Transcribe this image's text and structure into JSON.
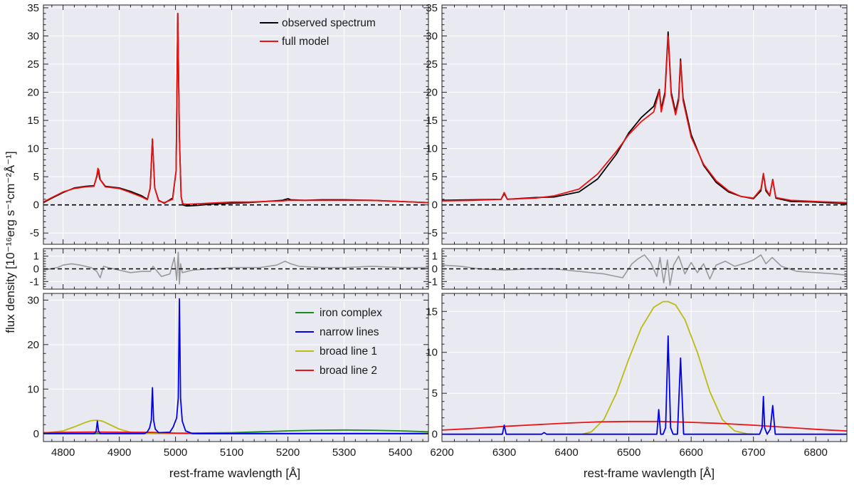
{
  "figure": {
    "ylabel": "flux density [10⁻¹⁶erg s⁻¹cm⁻²Å⁻¹]",
    "xlabel": "rest-frame wavlength [Å]",
    "legend_top": [
      "observed spectrum",
      "full model"
    ],
    "legend_bottom": [
      "iron complex",
      "narrow lines",
      "broad line 1",
      "broad line 2"
    ]
  },
  "colors": {
    "observed": "#000000",
    "model": "#ee1111",
    "residual": "#999999",
    "iron": "#1a8a1a",
    "narrow": "#0000ee",
    "broad1": "#bbbb11",
    "broad2": "#ee1111",
    "zero": "#000000",
    "panel_bg": "#e9e9f1",
    "grid": "#ffffff"
  },
  "chart_data": [
    {
      "panel": "top-left",
      "type": "line",
      "xlim": [
        4765,
        5450
      ],
      "ylim": [
        -7,
        35.5
      ],
      "xticks": [
        4800,
        4900,
        5000,
        5100,
        5200,
        5300,
        5400
      ],
      "yticks": [
        -5,
        0,
        5,
        10,
        15,
        20,
        25,
        30,
        35
      ],
      "series": [
        {
          "name": "observed spectrum",
          "color_key": "observed",
          "x": [
            4765,
            4780,
            4800,
            4820,
            4840,
            4855,
            4860,
            4863,
            4866,
            4875,
            4900,
            4920,
            4940,
            4950,
            4955,
            4959,
            4963,
            4970,
            4980,
            4995,
            5001,
            5004,
            5007,
            5010,
            5013,
            5020,
            5040,
            5060,
            5080,
            5100,
            5130,
            5160,
            5190,
            5200,
            5205,
            5230,
            5260,
            5300,
            5350,
            5400,
            5450
          ],
          "y": [
            0.4,
            1.2,
            2.2,
            3.0,
            3.3,
            3.4,
            5.0,
            6.3,
            4.5,
            3.3,
            3.0,
            2.4,
            1.6,
            1.0,
            3.0,
            11.7,
            3.0,
            0.8,
            0.3,
            1.2,
            6.0,
            34.0,
            12.0,
            1.5,
            0.0,
            -0.2,
            -0.1,
            0.1,
            0.2,
            0.3,
            0.4,
            0.6,
            0.8,
            1.1,
            0.9,
            0.8,
            0.9,
            0.9,
            0.8,
            0.6,
            0.4
          ]
        },
        {
          "name": "full model",
          "color_key": "model",
          "x": [
            4765,
            4780,
            4800,
            4820,
            4840,
            4855,
            4860,
            4862,
            4865,
            4875,
            4900,
            4920,
            4940,
            4950,
            4955,
            4959,
            4963,
            4970,
            4980,
            4995,
            5001,
            5004,
            5007,
            5010,
            5013,
            5020,
            5040,
            5060,
            5080,
            5100,
            5130,
            5160,
            5190,
            5200,
            5230,
            5260,
            5300,
            5350,
            5400,
            5450
          ],
          "y": [
            0.5,
            1.3,
            2.3,
            2.9,
            3.2,
            3.3,
            5.2,
            6.5,
            4.6,
            3.2,
            2.9,
            2.2,
            1.4,
            0.9,
            3.0,
            11.7,
            3.0,
            0.7,
            0.4,
            1.0,
            6.0,
            34.0,
            12.0,
            1.5,
            0.2,
            0.1,
            0.2,
            0.3,
            0.4,
            0.5,
            0.5,
            0.6,
            0.7,
            0.8,
            0.8,
            0.8,
            0.8,
            0.8,
            0.6,
            0.4
          ]
        }
      ],
      "hlines": [
        0
      ]
    },
    {
      "panel": "middle-left",
      "type": "line",
      "xlim": [
        4765,
        5450
      ],
      "ylim": [
        -1.6,
        1.6
      ],
      "xticks": [
        4800,
        4900,
        5000,
        5100,
        5200,
        5300,
        5400
      ],
      "yticks": [
        -1,
        0,
        1
      ],
      "series": [
        {
          "name": "residual",
          "color_key": "residual",
          "x": [
            4765,
            4790,
            4800,
            4815,
            4830,
            4850,
            4860,
            4866,
            4872,
            4880,
            4900,
            4920,
            4940,
            4955,
            4960,
            4975,
            4990,
            4998,
            5002,
            5005,
            5007,
            5009,
            5012,
            5030,
            5060,
            5100,
            5150,
            5180,
            5195,
            5205,
            5220,
            5260,
            5300,
            5350,
            5400,
            5450
          ],
          "y": [
            -0.1,
            0.1,
            0.3,
            0.4,
            0.3,
            0.1,
            -0.2,
            -0.7,
            0.2,
            0.1,
            -0.1,
            -0.3,
            -0.2,
            -0.2,
            0.2,
            -0.6,
            -0.4,
            0.9,
            -0.9,
            1.3,
            -1.2,
            0.4,
            -0.3,
            -0.1,
            0.0,
            0.1,
            0.1,
            0.3,
            0.6,
            0.4,
            0.2,
            0.1,
            0.1,
            0.2,
            0.1,
            0.1
          ]
        }
      ],
      "hlines": [
        0
      ]
    },
    {
      "panel": "bottom-left",
      "type": "line",
      "xlim": [
        4765,
        5450
      ],
      "ylim": [
        -1.8,
        31.5
      ],
      "xticks": [
        4800,
        4900,
        5000,
        5100,
        5200,
        5300,
        5400
      ],
      "xticklabels": [
        "4800",
        "4900",
        "5000",
        "5100",
        "5200",
        "5300",
        "5400"
      ],
      "yticks": [
        0,
        10,
        20,
        30
      ],
      "series": [
        {
          "name": "iron complex",
          "color_key": "iron",
          "x": [
            4765,
            4900,
            5000,
            5100,
            5150,
            5200,
            5250,
            5300,
            5350,
            5400,
            5450
          ],
          "y": [
            0.0,
            0.0,
            0.05,
            0.2,
            0.4,
            0.6,
            0.75,
            0.8,
            0.75,
            0.6,
            0.4
          ]
        },
        {
          "name": "broad line 1",
          "color_key": "broad1",
          "x": [
            4765,
            4800,
            4820,
            4840,
            4850,
            4860,
            4870,
            4880,
            4900,
            4920,
            4940,
            4960,
            5450
          ],
          "y": [
            0.1,
            0.6,
            1.5,
            2.5,
            2.9,
            3.0,
            2.8,
            2.2,
            1.0,
            0.3,
            0.1,
            0.0,
            0.0
          ]
        },
        {
          "name": "broad line 2",
          "color_key": "broad2",
          "x": [
            4765,
            4820,
            4860,
            4900,
            4960,
            5000,
            5050,
            5450
          ],
          "y": [
            0.2,
            0.3,
            0.35,
            0.3,
            0.25,
            0.1,
            0.0,
            0.0
          ]
        },
        {
          "name": "narrow lines",
          "color_key": "narrow",
          "x": [
            4765,
            4856,
            4859,
            4861,
            4863,
            4866,
            4945,
            4950,
            4954,
            4957,
            4959,
            4961,
            4964,
            4970,
            4990,
            4996,
            5002,
            5005,
            5007,
            5009,
            5012,
            5018,
            5030,
            5450
          ],
          "y": [
            0.0,
            0.0,
            0.6,
            2.8,
            0.6,
            0.0,
            0.0,
            0.4,
            1.3,
            3.0,
            10.3,
            3.0,
            1.0,
            0.2,
            0.3,
            1.5,
            3.5,
            8.0,
            30.3,
            8.0,
            2.8,
            0.6,
            0.0,
            0.0
          ]
        }
      ],
      "hlines": []
    },
    {
      "panel": "top-right",
      "type": "line",
      "xlim": [
        6200,
        6850
      ],
      "ylim": [
        -7,
        35.5
      ],
      "xticks": [
        6200,
        6300,
        6400,
        6500,
        6600,
        6700,
        6800
      ],
      "yticks": [
        -5,
        0,
        5,
        10,
        15,
        20,
        25,
        30,
        35
      ],
      "series": [
        {
          "name": "observed spectrum",
          "color_key": "observed",
          "x": [
            6200,
            6250,
            6295,
            6300,
            6305,
            6350,
            6380,
            6420,
            6450,
            6480,
            6500,
            6520,
            6540,
            6546,
            6549,
            6552,
            6558,
            6563,
            6568,
            6575,
            6580,
            6583,
            6587,
            6600,
            6620,
            6640,
            6660,
            6680,
            6700,
            6712,
            6716,
            6720,
            6726,
            6731,
            6736,
            6760,
            6800,
            6850
          ],
          "y": [
            0.8,
            0.9,
            1.0,
            2.0,
            1.0,
            1.3,
            1.4,
            2.3,
            4.6,
            9.0,
            12.8,
            15.5,
            17.5,
            19.5,
            20.5,
            17.0,
            20.0,
            30.7,
            20.0,
            16.5,
            19.0,
            25.9,
            19.0,
            12.5,
            7.0,
            4.0,
            2.3,
            1.5,
            1.1,
            2.5,
            5.5,
            2.5,
            1.6,
            4.5,
            1.2,
            0.6,
            0.5,
            0.2
          ]
        },
        {
          "name": "full model",
          "color_key": "model",
          "x": [
            6200,
            6250,
            6295,
            6300,
            6305,
            6350,
            6380,
            6420,
            6450,
            6480,
            6500,
            6520,
            6540,
            6546,
            6549,
            6552,
            6558,
            6563,
            6568,
            6575,
            6580,
            6583,
            6587,
            6600,
            6620,
            6640,
            6660,
            6680,
            6700,
            6712,
            6716,
            6720,
            6726,
            6731,
            6736,
            6760,
            6800,
            6850
          ],
          "y": [
            0.7,
            0.8,
            1.0,
            2.2,
            1.0,
            1.2,
            1.6,
            2.8,
            5.5,
            9.5,
            12.5,
            14.8,
            16.5,
            19.0,
            20.3,
            16.5,
            19.5,
            30.0,
            19.5,
            16.0,
            18.5,
            25.5,
            18.5,
            12.0,
            7.2,
            4.3,
            2.5,
            1.5,
            1.2,
            2.8,
            5.6,
            2.8,
            1.7,
            4.4,
            1.3,
            0.8,
            0.6,
            0.4
          ]
        }
      ],
      "hlines": [
        0
      ]
    },
    {
      "panel": "middle-right",
      "type": "line",
      "xlim": [
        6200,
        6850
      ],
      "ylim": [
        -1.6,
        1.6
      ],
      "xticks": [
        6200,
        6300,
        6400,
        6500,
        6600,
        6700,
        6800
      ],
      "yticks": [
        -1,
        0,
        1
      ],
      "series": [
        {
          "name": "residual",
          "color_key": "residual",
          "x": [
            6200,
            6230,
            6260,
            6300,
            6340,
            6380,
            6420,
            6460,
            6490,
            6505,
            6515,
            6525,
            6535,
            6545,
            6550,
            6556,
            6562,
            6566,
            6572,
            6580,
            6590,
            6600,
            6610,
            6620,
            6630,
            6640,
            6655,
            6670,
            6690,
            6700,
            6712,
            6720,
            6730,
            6745,
            6770,
            6800,
            6830,
            6850
          ],
          "y": [
            0.3,
            0.2,
            0.0,
            -0.1,
            0.0,
            0.0,
            -0.2,
            -0.4,
            -0.7,
            0.4,
            0.8,
            1.1,
            0.5,
            -0.6,
            0.9,
            -1.1,
            0.7,
            -1.3,
            0.3,
            1.0,
            -0.4,
            0.5,
            -0.3,
            0.4,
            -0.8,
            0.3,
            0.6,
            0.2,
            0.5,
            0.7,
            1.1,
            0.4,
            0.9,
            0.2,
            -0.2,
            -0.3,
            -0.4,
            -0.5
          ]
        }
      ],
      "hlines": [
        0
      ]
    },
    {
      "panel": "bottom-right",
      "type": "line",
      "xlim": [
        6200,
        6850
      ],
      "ylim": [
        -0.9,
        17.2
      ],
      "xticks": [
        6200,
        6300,
        6400,
        6500,
        6600,
        6700,
        6800
      ],
      "xticklabels": [
        "6200",
        "6300",
        "6400",
        "6500",
        "6600",
        "6700",
        "6800"
      ],
      "yticks": [
        0,
        5,
        10,
        15
      ],
      "series": [
        {
          "name": "broad line 1",
          "color_key": "broad1",
          "x": [
            6425,
            6440,
            6460,
            6480,
            6500,
            6520,
            6540,
            6555,
            6563,
            6575,
            6590,
            6610,
            6630,
            6650,
            6670,
            6690,
            6700
          ],
          "y": [
            0.0,
            0.3,
            1.8,
            5.0,
            9.2,
            13.0,
            15.5,
            16.2,
            16.2,
            15.8,
            14.0,
            10.0,
            5.2,
            1.8,
            0.4,
            0.05,
            0.0
          ]
        },
        {
          "name": "broad line 2",
          "color_key": "broad2",
          "x": [
            6200,
            6250,
            6300,
            6350,
            6400,
            6450,
            6500,
            6550,
            6600,
            6650,
            6700,
            6750,
            6800,
            6850
          ],
          "y": [
            0.5,
            0.7,
            0.95,
            1.15,
            1.35,
            1.5,
            1.55,
            1.55,
            1.45,
            1.3,
            1.1,
            0.85,
            0.6,
            0.4
          ]
        },
        {
          "name": "narrow lines",
          "color_key": "narrow",
          "x": [
            6200,
            6297,
            6300,
            6303,
            6360,
            6364,
            6368,
            6545,
            6548,
            6551,
            6555,
            6559,
            6563,
            6567,
            6571,
            6578,
            6583,
            6588,
            6592,
            6710,
            6714,
            6716,
            6718,
            6722,
            6727,
            6731,
            6735,
            6850
          ],
          "y": [
            0.0,
            0.0,
            1.1,
            0.0,
            0.0,
            0.2,
            0.0,
            0.0,
            3.0,
            0.0,
            0.0,
            0.8,
            12.0,
            0.8,
            0.0,
            0.0,
            9.3,
            0.0,
            0.0,
            0.0,
            0.8,
            4.6,
            0.8,
            0.0,
            0.6,
            3.5,
            0.0,
            0.0
          ]
        }
      ],
      "hlines": []
    }
  ]
}
